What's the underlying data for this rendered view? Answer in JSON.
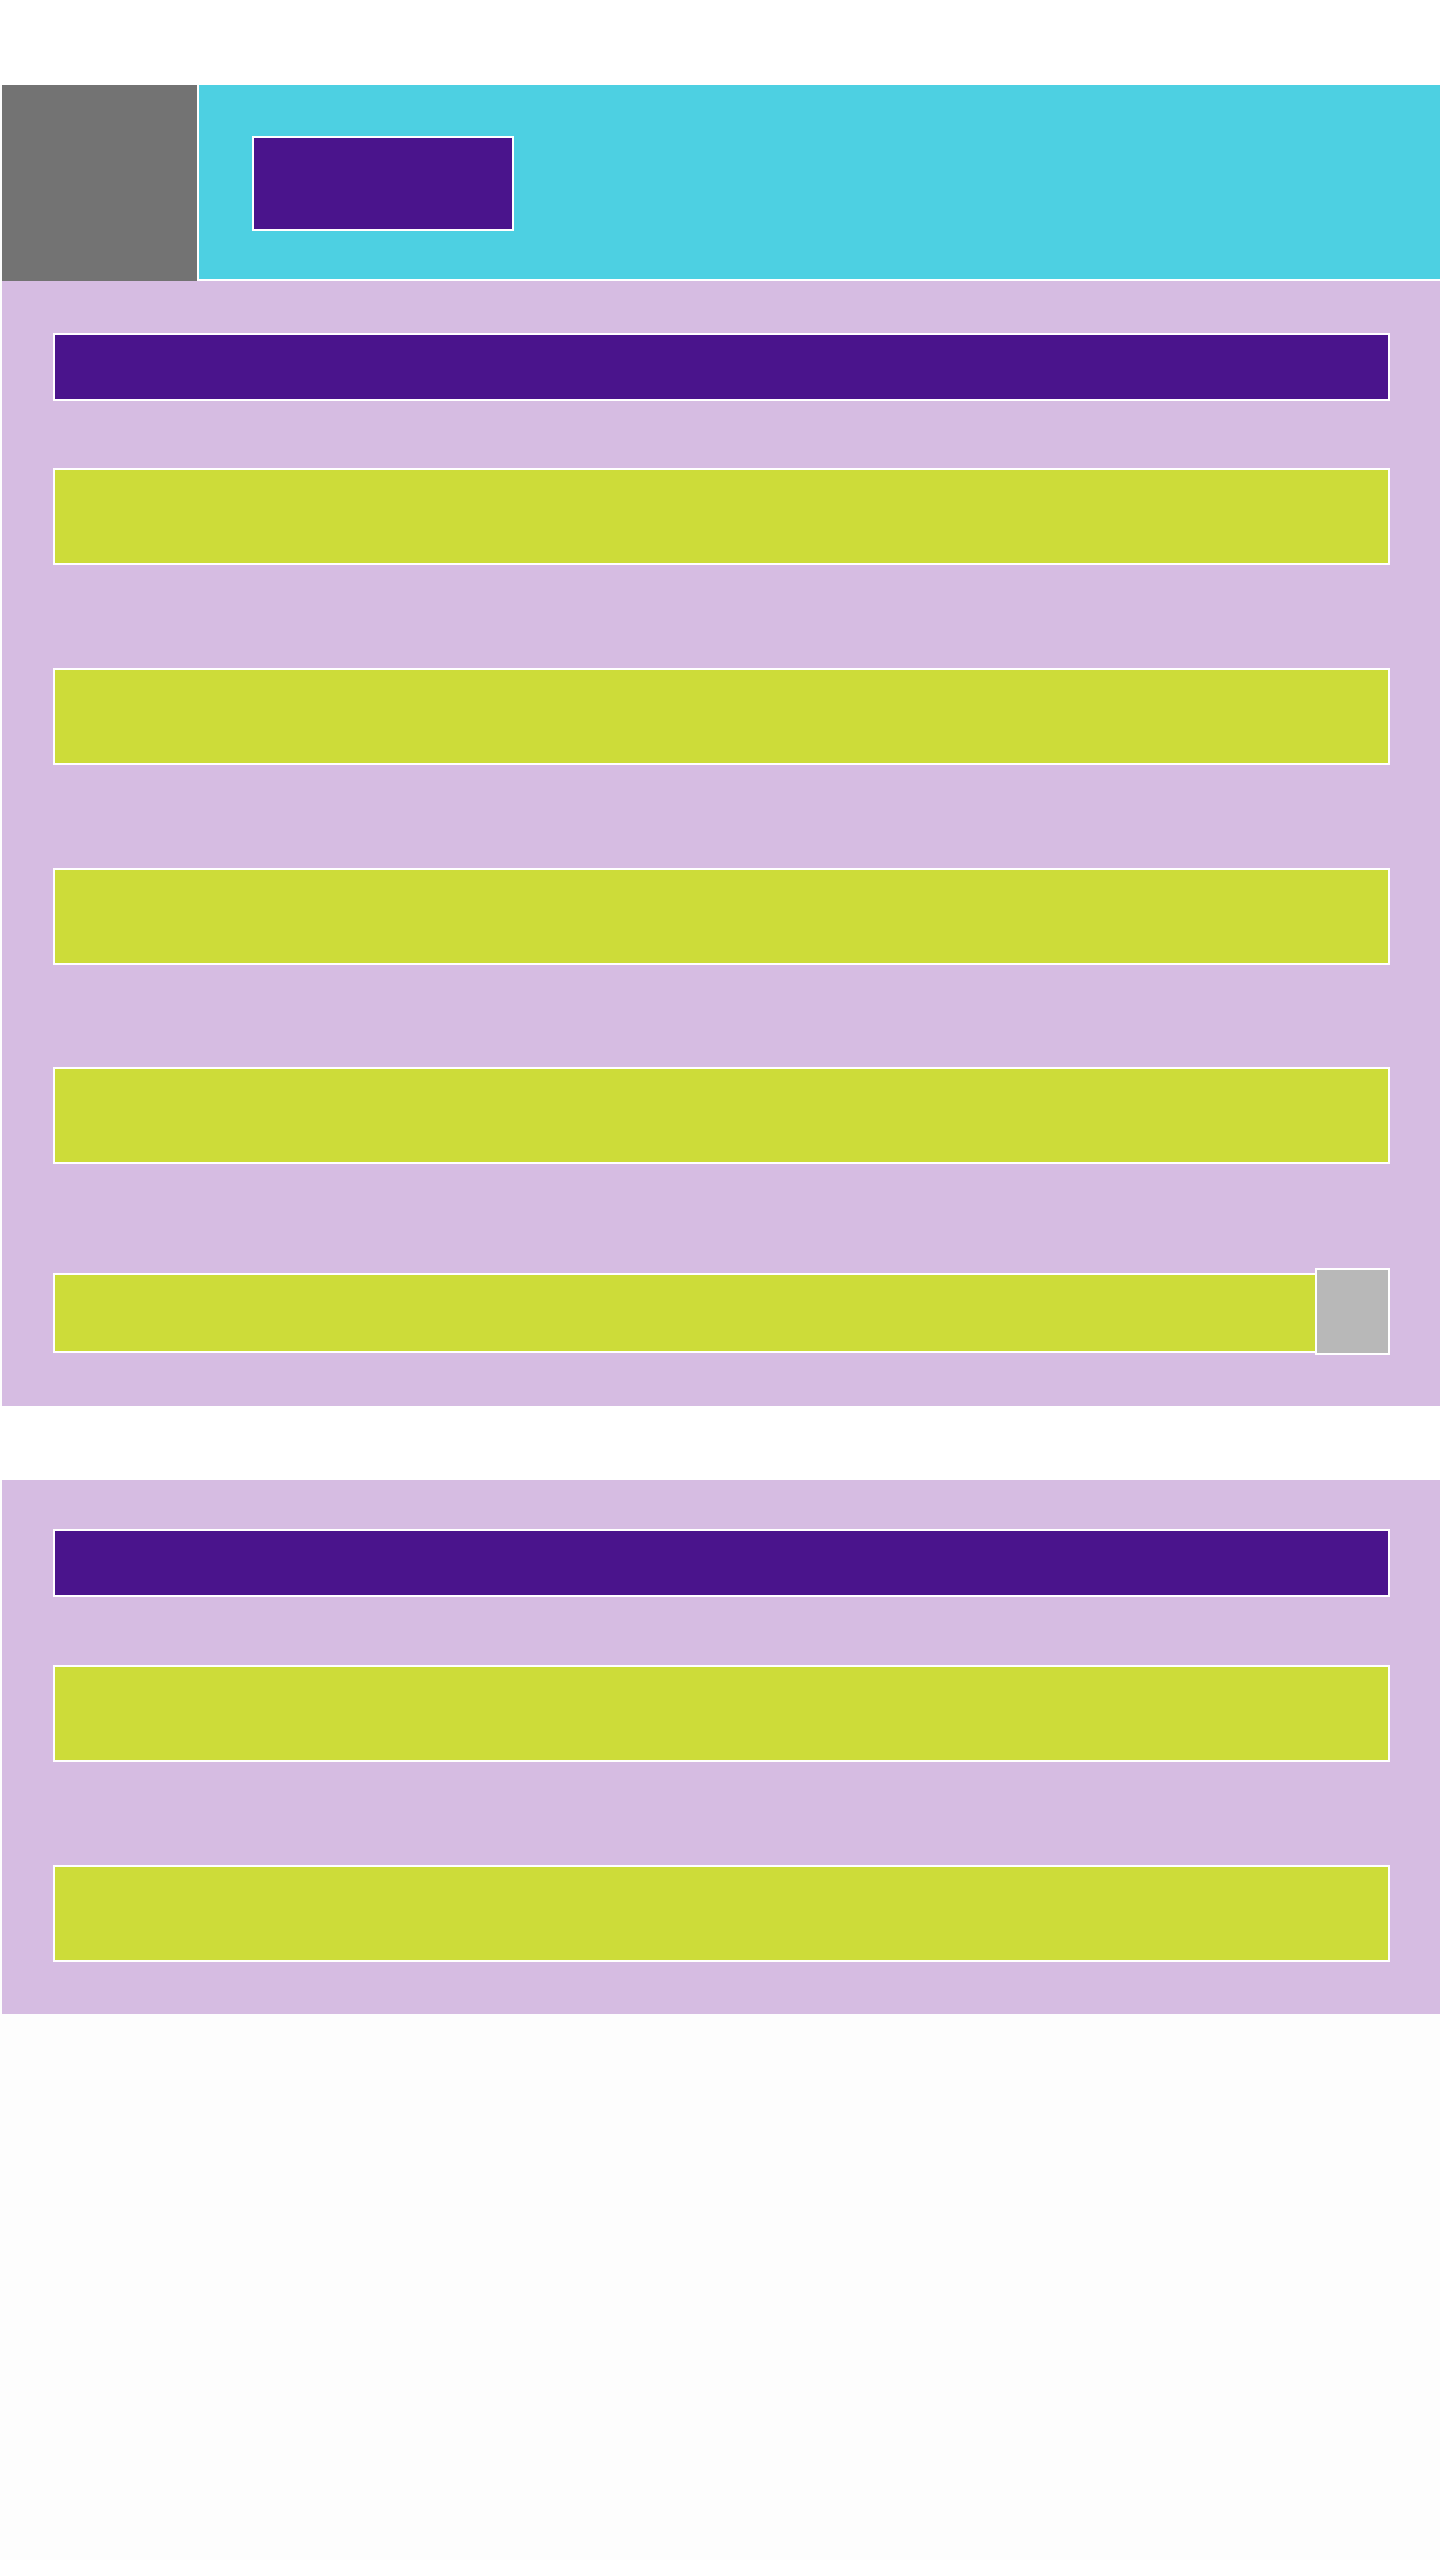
{
  "colors": {
    "accent": "#4a148c",
    "header": "#4dd0e2",
    "panel": "#d6bce2",
    "field": "#cddc39",
    "thumbnail": "#737373",
    "button": "#b8b8b8"
  },
  "header": {
    "thumbnail_icon": "image-placeholder-icon",
    "title": ""
  },
  "section_1": {
    "title": "",
    "fields": [
      {
        "value": ""
      },
      {
        "value": ""
      },
      {
        "value": ""
      },
      {
        "value": ""
      },
      {
        "value": ""
      }
    ],
    "field_action_icon": "square-button-icon"
  },
  "section_2": {
    "title": "",
    "fields": [
      {
        "value": ""
      },
      {
        "value": ""
      }
    ]
  }
}
